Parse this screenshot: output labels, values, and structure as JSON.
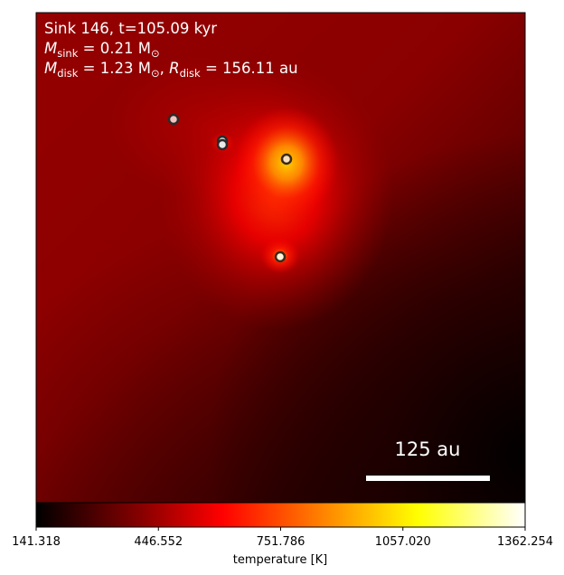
{
  "chart_data": {
    "type": "heatmap",
    "annotation": {
      "line1": "Sink 146, t=105.09 kyr",
      "line2_label": "M",
      "line2_sub": "sink",
      "line2_value": " = 0.21 M",
      "line2_unit_sub": "⊙",
      "line3_label": "M",
      "line3_sub": "disk",
      "line3_value": " = 1.23 M",
      "line3_unit_sub": "⊙",
      "line3_sep": ", ",
      "line3_r": "R",
      "line3_r_sub": "disk",
      "line3_r_value": " = 156.11 au"
    },
    "scalebar_label": "125 au",
    "colorbar": {
      "label": "temperature [K]",
      "min": 141.318,
      "max": 1362.254,
      "ticks": [
        "141.318",
        "446.552",
        "751.786",
        "1057.020",
        "1362.254"
      ],
      "colormap": [
        "#000000",
        "#8b0000",
        "#ff0000",
        "#ff8c00",
        "#ffff00",
        "#ffffff"
      ]
    },
    "sinks": [
      {
        "id": "sink-a",
        "fill": "#f2c4c0"
      },
      {
        "id": "sink-b",
        "fill": "#e0e0e0"
      },
      {
        "id": "sink-c",
        "fill": "#f7e0c0"
      },
      {
        "id": "sink-d",
        "fill": "#fff4d8"
      }
    ]
  }
}
